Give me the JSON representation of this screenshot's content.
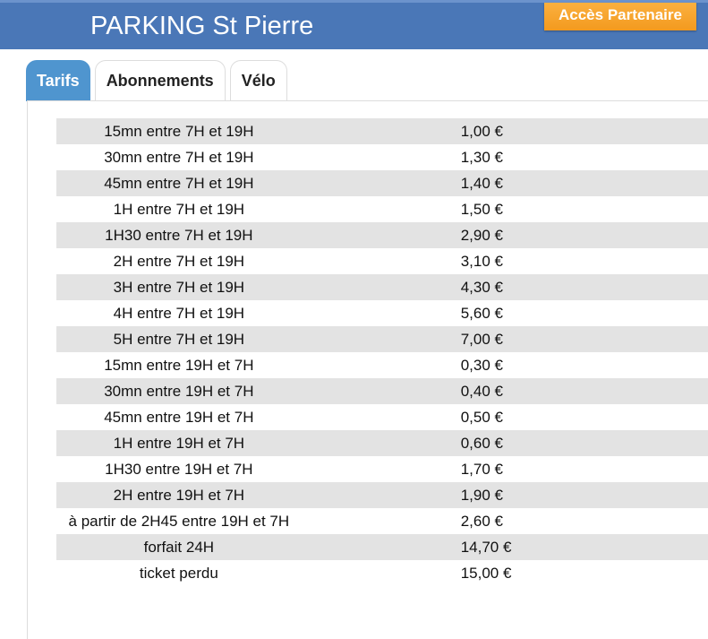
{
  "header": {
    "title": "PARKING St Pierre",
    "partner_label": "Accès Partenaire",
    "color": "#4a77b7"
  },
  "tabs": [
    {
      "label": "Tarifs",
      "active": true
    },
    {
      "label": "Abonnements"
    },
    {
      "label": "Vélo"
    }
  ],
  "rates": [
    {
      "label": "15mn entre 7H et 19H",
      "price": "1,00 €"
    },
    {
      "label": "30mn entre 7H et 19H",
      "price": "1,30 €"
    },
    {
      "label": "45mn entre 7H et 19H",
      "price": "1,40 €"
    },
    {
      "label": "1H entre 7H et 19H",
      "price": "1,50 €"
    },
    {
      "label": "1H30 entre 7H et 19H",
      "price": "2,90 €"
    },
    {
      "label": "2H entre 7H et 19H",
      "price": "3,10 €"
    },
    {
      "label": "3H entre 7H et 19H",
      "price": "4,30 €"
    },
    {
      "label": "4H entre 7H et 19H",
      "price": "5,60 €"
    },
    {
      "label": "5H entre 7H et 19H",
      "price": "7,00 €"
    },
    {
      "label": "15mn entre 19H et 7H",
      "price": "0,30 €"
    },
    {
      "label": "30mn entre 19H et 7H",
      "price": "0,40 €"
    },
    {
      "label": "45mn entre 19H et 7H",
      "price": "0,50 €"
    },
    {
      "label": "1H entre 19H et 7H",
      "price": "0,60 €"
    },
    {
      "label": "1H30 entre 19H et 7H",
      "price": "1,70 €"
    },
    {
      "label": "2H entre 19H et 7H",
      "price": "1,90 €"
    },
    {
      "label": "à partir de 2H45 entre 19H et 7H",
      "price": "2,60 €"
    },
    {
      "label": "forfait 24H",
      "price": "14,70 €"
    },
    {
      "label": "ticket perdu",
      "price": "15,00 €"
    }
  ]
}
